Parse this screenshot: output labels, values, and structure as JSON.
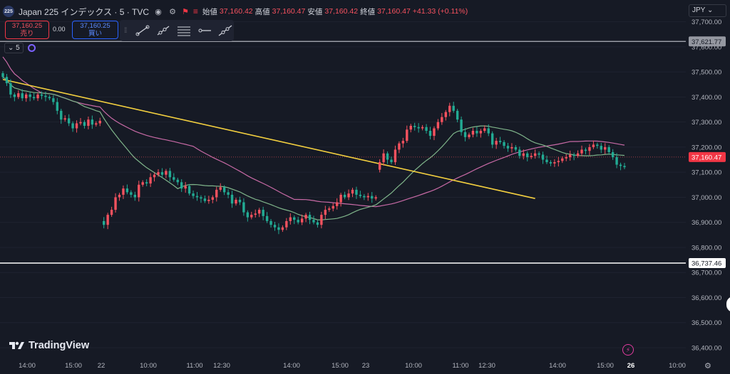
{
  "header": {
    "symbol_badge": "225",
    "title": "Japan 225 インデックス · 5 · TVC",
    "ohlc": [
      {
        "label": "始値",
        "value": "37,160.42"
      },
      {
        "label": "高値",
        "value": "37,160.47"
      },
      {
        "label": "安値",
        "value": "37,160.42"
      },
      {
        "label": "終値",
        "value": "37,160.47"
      }
    ],
    "change": "+41.33 (+0.11%)"
  },
  "trade": {
    "sell_price": "37,160.25",
    "sell_label": "売り",
    "spread": "0.00",
    "buy_price": "37,160.25",
    "buy_label": "買い"
  },
  "toolbar": {
    "tools": [
      "trend-line-icon",
      "ray-icon",
      "parallel-channel-icon",
      "horizontal-ray-icon",
      "extended-line-icon"
    ]
  },
  "indicator": {
    "value": "5"
  },
  "currency": "JPY",
  "brand": "TradingView",
  "colors": {
    "background": "#161a25",
    "up": "#f7525f",
    "down": "#22ab94",
    "ma_fast": "#7fb48a",
    "ma_slow": "#c86aa6",
    "trendline": "#f4d03f",
    "hline": "#ffffff",
    "price_line": "#f7525f"
  },
  "chart_data": {
    "type": "candlestick",
    "symbol": "Japan 225",
    "interval": "5",
    "ylim": [
      36380,
      37770
    ],
    "y_ticks": [
      "37,700.00",
      "37,600.00",
      "37,500.00",
      "37,400.00",
      "37,300.00",
      "37,200.00",
      "37,100.00",
      "37,000.00",
      "36,900.00",
      "36,800.00",
      "36,700.00",
      "36,600.00",
      "36,500.00",
      "36,400.00"
    ],
    "x_ticks": [
      "14:00",
      "15:00",
      "22",
      "10:00",
      "11:00",
      "12:30",
      "14:00",
      "15:00",
      "23",
      "10:00",
      "11:00",
      "12:30",
      "14:00",
      "15:00",
      "26",
      "10:00"
    ],
    "horizontal_lines": [
      {
        "value": 37621.77,
        "label": "37,621.77"
      },
      {
        "value": 36737.46,
        "label": "36,737.46"
      }
    ],
    "last_price": {
      "value": 37160.47,
      "label": "37,160.47"
    },
    "trendline": [
      {
        "bar": 0,
        "value": 37470
      },
      {
        "bar": 137,
        "value": 36995
      }
    ],
    "close": [
      37480,
      37455,
      37410,
      37400,
      37415,
      37395,
      37410,
      37400,
      37395,
      37410,
      37405,
      37400,
      37395,
      37380,
      37345,
      37310,
      37315,
      37295,
      37275,
      37295,
      37300,
      37285,
      37310,
      37290,
      37295,
      37305,
      36890,
      36930,
      36950,
      37000,
      37010,
      37035,
      37020,
      37010,
      37000,
      37050,
      37060,
      37055,
      37080,
      37090,
      37100,
      37090,
      37105,
      37080,
      37070,
      37060,
      37035,
      37045,
      37015,
      37005,
      37000,
      36995,
      36985,
      36990,
      37000,
      37030,
      37040,
      37020,
      37010,
      36975,
      36990,
      36980,
      36940,
      36920,
      36930,
      36935,
      36950,
      36925,
      36905,
      36890,
      36880,
      36870,
      36880,
      36905,
      36920,
      36910,
      36900,
      36915,
      36930,
      36910,
      36900,
      36890,
      36930,
      36950,
      36955,
      36965,
      36980,
      37010,
      37000,
      37015,
      37030,
      37010,
      37005,
      37000,
      37005,
      36995,
      37000,
      37140,
      37175,
      37150,
      37140,
      37190,
      37215,
      37225,
      37270,
      37285,
      37280,
      37275,
      37280,
      37265,
      37245,
      37275,
      37300,
      37320,
      37340,
      37365,
      37345,
      37310,
      37260,
      37240,
      37250,
      37265,
      37255,
      37265,
      37275,
      37255,
      37210,
      37225,
      37220,
      37205,
      37195,
      37200,
      37190,
      37165,
      37175,
      37160,
      37165,
      37175,
      37170,
      37150,
      37140,
      37135,
      37140,
      37145,
      37155,
      37160,
      37170,
      37165,
      37175,
      37190,
      37185,
      37200,
      37210,
      37205,
      37190,
      37200,
      37180,
      37160,
      37130,
      37125,
      37120
    ]
  }
}
